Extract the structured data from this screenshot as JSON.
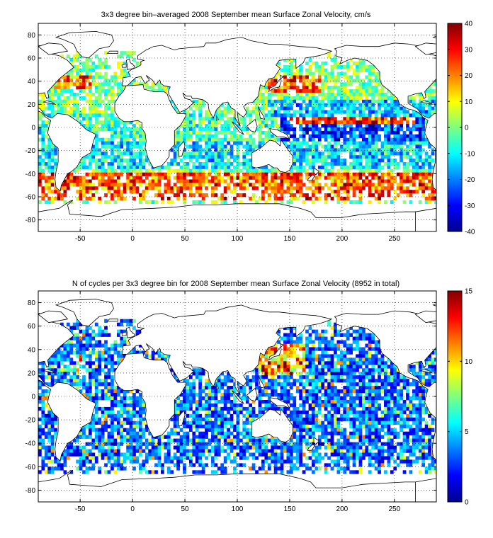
{
  "chart_data": [
    {
      "type": "heatmap",
      "title": "3x3 degree bin–averaged 2008 September mean Surface Zonal Velocity, cm/s",
      "xlabel": "",
      "ylabel": "",
      "xlim": [
        -90,
        290
      ],
      "ylim": [
        -90,
        90
      ],
      "x_ticks": [
        -50,
        0,
        50,
        100,
        150,
        200,
        250
      ],
      "y_ticks": [
        80,
        60,
        40,
        20,
        0,
        -20,
        -40,
        -60,
        -80
      ],
      "grid": true,
      "bin_size_deg": 3,
      "colormap": "jet",
      "colorbar": {
        "min": -40,
        "max": 40,
        "ticks": [
          40,
          30,
          20,
          10,
          0,
          -10,
          -20,
          -30,
          -40
        ]
      }
    },
    {
      "type": "heatmap",
      "title": "N of cycles per 3x3 degree bin for 2008 September mean Surface Zonal Velocity (8952 in total)",
      "xlabel": "",
      "ylabel": "",
      "xlim": [
        -90,
        290
      ],
      "ylim": [
        -90,
        90
      ],
      "x_ticks": [
        -50,
        0,
        50,
        100,
        150,
        200,
        250
      ],
      "y_ticks": [
        80,
        60,
        40,
        20,
        0,
        -20,
        -40,
        -60,
        -80
      ],
      "grid": true,
      "bin_size_deg": 3,
      "colormap": "jet",
      "colorbar": {
        "min": 0,
        "max": 15,
        "ticks": [
          15,
          10,
          5,
          0
        ]
      }
    }
  ]
}
